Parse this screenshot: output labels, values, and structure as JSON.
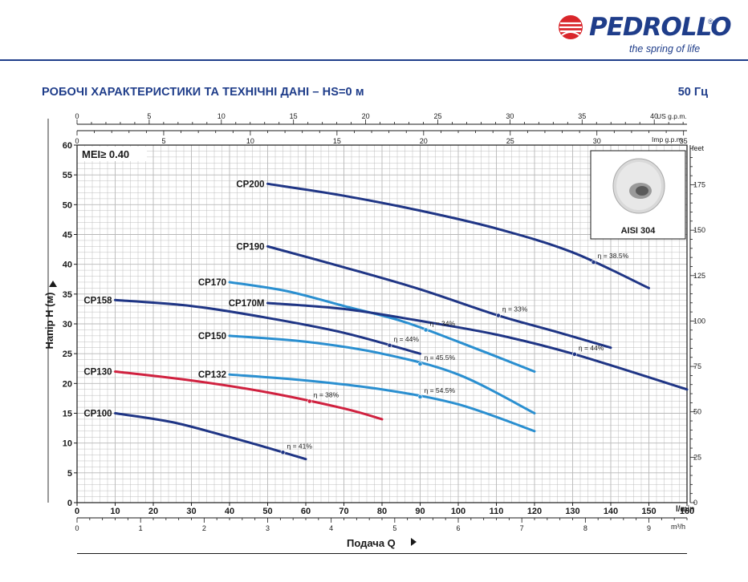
{
  "header": {
    "brand": "PEDROLLO",
    "registered": "®",
    "tagline": "the spring of life",
    "title": "РОБОЧІ ХАРАКТЕРИСТИКИ ТА ТЕХНІЧНІ ДАНІ  –  HS=0 м",
    "frequency": "50 Гц"
  },
  "colors": {
    "brand_blue": "#1f3d8a",
    "brand_red": "#d9262b",
    "curve_navy": "#1f3585",
    "curve_light": "#2a8fd0",
    "curve_red": "#d0213f",
    "grid": "#b8b8b8"
  },
  "chart_data": {
    "type": "line",
    "x_label": "Подача Q",
    "y_label": "Напір H (м)",
    "mei_label": "MEI≥ 0.40",
    "inset_label": "AISI 304",
    "x_primary": {
      "unit": "l/min",
      "range": [
        0,
        160
      ],
      "ticks": [
        0,
        10,
        20,
        30,
        40,
        50,
        60,
        70,
        80,
        90,
        100,
        110,
        120,
        130,
        140,
        150,
        160
      ]
    },
    "x_m3h": {
      "unit": "m³/h",
      "max": 9.6,
      "ticks": [
        0,
        1,
        2,
        3,
        4,
        5,
        6,
        7,
        8,
        9
      ]
    },
    "x_us_gpm": {
      "unit": "US g.p.m.",
      "max": 42.27,
      "ticks": [
        0,
        5,
        10,
        15,
        20,
        25,
        30,
        35,
        40
      ]
    },
    "x_imp_gpm": {
      "unit": "Imp g.p.m.",
      "max": 35.2,
      "ticks": [
        0,
        5,
        10,
        15,
        20,
        25,
        30,
        35
      ]
    },
    "y_primary": {
      "unit": "m",
      "range": [
        0,
        60
      ],
      "ticks": [
        0,
        5,
        10,
        15,
        20,
        25,
        30,
        35,
        40,
        45,
        50,
        55,
        60
      ]
    },
    "y_feet": {
      "unit": "feet",
      "max": 196.85,
      "ticks": [
        0,
        25,
        50,
        75,
        100,
        125,
        150,
        175
      ]
    },
    "series": [
      {
        "name": "CP200",
        "color": "navy",
        "eff_label": "η = 38.5%",
        "eff_at": 135.5,
        "points": [
          [
            50,
            53.5
          ],
          [
            70,
            51.5
          ],
          [
            90,
            49.0
          ],
          [
            110,
            46.0
          ],
          [
            130,
            42.0
          ],
          [
            150,
            36.0
          ]
        ]
      },
      {
        "name": "CP190",
        "color": "navy",
        "eff_label": "η = 33%",
        "eff_at": 110.5,
        "points": [
          [
            50,
            43.0
          ],
          [
            70,
            39.5
          ],
          [
            90,
            35.8
          ],
          [
            110,
            31.5
          ],
          [
            125,
            28.8
          ],
          [
            140,
            26.0
          ]
        ]
      },
      {
        "name": "CP170",
        "color": "light",
        "eff_label": "η = 34%",
        "eff_at": 91.5,
        "points": [
          [
            40,
            37.0
          ],
          [
            55,
            35.5
          ],
          [
            70,
            33.0
          ],
          [
            85,
            30.5
          ],
          [
            100,
            27.0
          ],
          [
            120,
            22.0
          ]
        ]
      },
      {
        "name": "CP170M",
        "color": "navy",
        "eff_label": "η = 44%",
        "eff_at": 130.5,
        "points": [
          [
            50,
            33.5
          ],
          [
            70,
            32.5
          ],
          [
            90,
            30.5
          ],
          [
            110,
            28.2
          ],
          [
            130,
            25.0
          ],
          [
            160,
            19.0
          ]
        ]
      },
      {
        "name": "CP158",
        "color": "navy",
        "eff_label": "η = 44%",
        "eff_at": 82,
        "points": [
          [
            10,
            34.0
          ],
          [
            30,
            33.0
          ],
          [
            50,
            31.0
          ],
          [
            70,
            28.5
          ],
          [
            90,
            25.0
          ]
        ]
      },
      {
        "name": "CP150",
        "color": "light",
        "eff_label": "η = 45.5%",
        "eff_at": 90,
        "points": [
          [
            40,
            28.0
          ],
          [
            60,
            27.0
          ],
          [
            80,
            25.0
          ],
          [
            100,
            21.5
          ],
          [
            120,
            15.0
          ]
        ]
      },
      {
        "name": "CP132",
        "color": "light",
        "eff_label": "η = 54.5%",
        "eff_at": 90,
        "points": [
          [
            40,
            21.5
          ],
          [
            60,
            20.5
          ],
          [
            80,
            19.0
          ],
          [
            100,
            16.5
          ],
          [
            120,
            12.0
          ]
        ]
      },
      {
        "name": "CP130",
        "color": "red",
        "eff_label": "η = 38%",
        "eff_at": 61,
        "points": [
          [
            10,
            22.0
          ],
          [
            30,
            20.5
          ],
          [
            50,
            18.5
          ],
          [
            70,
            15.8
          ],
          [
            80,
            14.0
          ]
        ]
      },
      {
        "name": "CP100",
        "color": "navy",
        "eff_label": "η = 41%",
        "eff_at": 54,
        "points": [
          [
            10,
            15.0
          ],
          [
            25,
            13.5
          ],
          [
            40,
            11.0
          ],
          [
            50,
            9.2
          ],
          [
            60,
            7.3
          ]
        ]
      }
    ]
  }
}
